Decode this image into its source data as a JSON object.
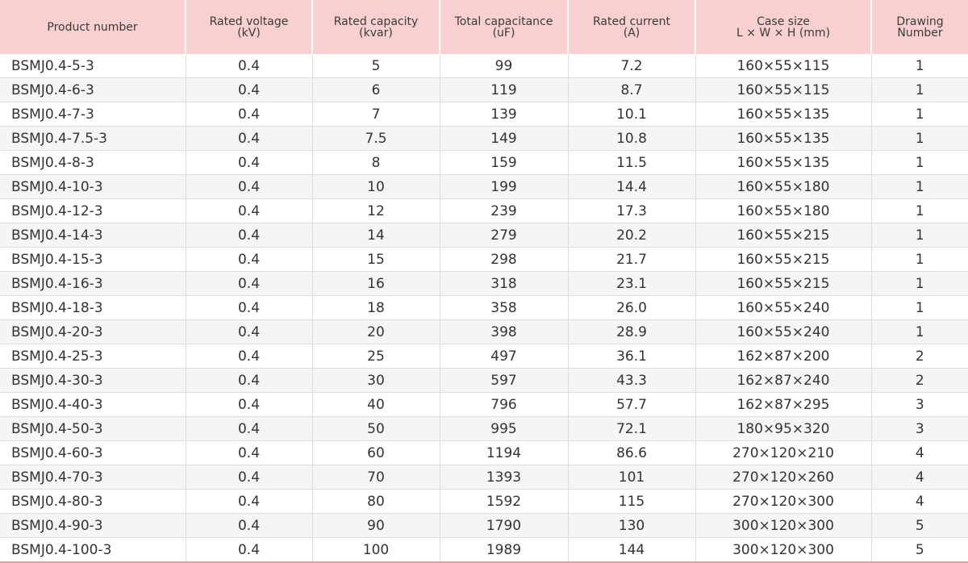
{
  "headers": [
    {
      "l1": "Product number",
      "l2": ""
    },
    {
      "l1": "Rated voltage",
      "l2": "(kV)"
    },
    {
      "l1": "Rated capacity",
      "l2": "(kvar)"
    },
    {
      "l1": "Total capacitance",
      "l2": "(uF)"
    },
    {
      "l1": "Rated current",
      "l2": "(A)"
    },
    {
      "l1": "Case size",
      "l2": "L × W × H (mm)"
    },
    {
      "l1": "Drawing",
      "l2": "Number"
    }
  ],
  "rows": [
    [
      "BSMJ0.4-5-3",
      "0.4",
      "5",
      "99",
      "7.2",
      "160×55×115",
      "1"
    ],
    [
      "BSMJ0.4-6-3",
      "0.4",
      "6",
      "119",
      "8.7",
      "160×55×115",
      "1"
    ],
    [
      "BSMJ0.4-7-3",
      "0.4",
      "7",
      "139",
      "10.1",
      "160×55×135",
      "1"
    ],
    [
      "BSMJ0.4-7.5-3",
      "0.4",
      "7.5",
      "149",
      "10.8",
      "160×55×135",
      "1"
    ],
    [
      "BSMJ0.4-8-3",
      "0.4",
      "8",
      "159",
      "11.5",
      "160×55×135",
      "1"
    ],
    [
      "BSMJ0.4-10-3",
      "0.4",
      "10",
      "199",
      "14.4",
      "160×55×180",
      "1"
    ],
    [
      "BSMJ0.4-12-3",
      "0.4",
      "12",
      "239",
      "17.3",
      "160×55×180",
      "1"
    ],
    [
      "BSMJ0.4-14-3",
      "0.4",
      "14",
      "279",
      "20.2",
      "160×55×215",
      "1"
    ],
    [
      "BSMJ0.4-15-3",
      "0.4",
      "15",
      "298",
      "21.7",
      "160×55×215",
      "1"
    ],
    [
      "BSMJ0.4-16-3",
      "0.4",
      "16",
      "318",
      "23.1",
      "160×55×215",
      "1"
    ],
    [
      "BSMJ0.4-18-3",
      "0.4",
      "18",
      "358",
      "26.0",
      "160×55×240",
      "1"
    ],
    [
      "BSMJ0.4-20-3",
      "0.4",
      "20",
      "398",
      "28.9",
      "160×55×240",
      "1"
    ],
    [
      "BSMJ0.4-25-3",
      "0.4",
      "25",
      "497",
      "36.1",
      "162×87×200",
      "2"
    ],
    [
      "BSMJ0.4-30-3",
      "0.4",
      "30",
      "597",
      "43.3",
      "162×87×240",
      "2"
    ],
    [
      "BSMJ0.4-40-3",
      "0.4",
      "40",
      "796",
      "57.7",
      "162×87×295",
      "3"
    ],
    [
      "BSMJ0.4-50-3",
      "0.4",
      "50",
      "995",
      "72.1",
      "180×95×320",
      "3"
    ],
    [
      "BSMJ0.4-60-3",
      "0.4",
      "60",
      "1194",
      "86.6",
      "270×120×210",
      "4"
    ],
    [
      "BSMJ0.4-70-3",
      "0.4",
      "70",
      "1393",
      "101",
      "270×120×260",
      "4"
    ],
    [
      "BSMJ0.4-80-3",
      "0.4",
      "80",
      "1592",
      "115",
      "270×120×300",
      "4"
    ],
    [
      "BSMJ0.4-90-3",
      "0.4",
      "90",
      "1790",
      "130",
      "300×120×300",
      "5"
    ],
    [
      "BSMJ0.4-100-3",
      "0.4",
      "100",
      "1989",
      "144",
      "300×120×300",
      "5"
    ]
  ],
  "colors": {
    "header_background": "#f8d0d0",
    "row_alt_background": "#f5f5f5",
    "bottom_border": "#d9a4a4"
  }
}
